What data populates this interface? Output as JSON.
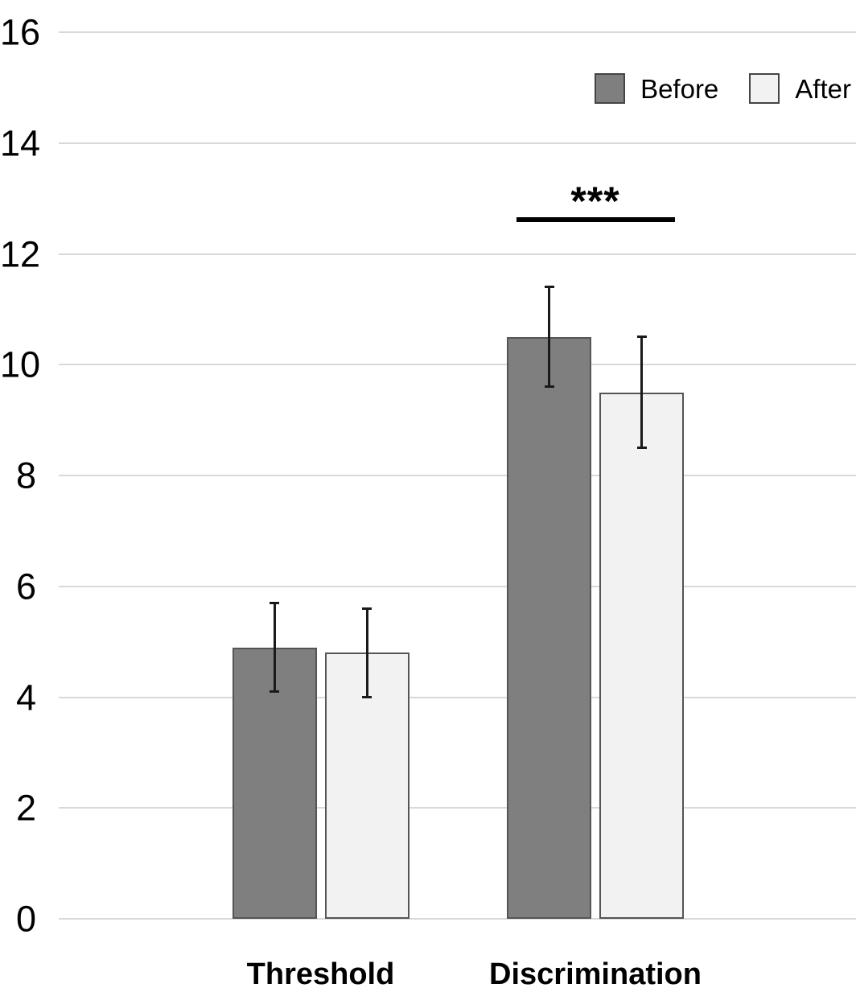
{
  "chart_data": {
    "type": "bar",
    "categories": [
      "Threshold",
      "Discrimination"
    ],
    "series": [
      {
        "name": "Before",
        "color": "#7f7f7f",
        "border_color": "#555555",
        "values": [
          4.9,
          10.5
        ],
        "error_low": [
          4.1,
          9.6
        ],
        "error_high": [
          5.7,
          11.4
        ]
      },
      {
        "name": "After",
        "color": "#f2f2f2",
        "border_color": "#555555",
        "values": [
          4.8,
          9.5
        ],
        "error_low": [
          4.0,
          8.5
        ],
        "error_high": [
          5.6,
          10.5
        ]
      }
    ],
    "title": "",
    "xlabel": "",
    "ylabel": "",
    "ylim": [
      0,
      16
    ],
    "yticks": [
      0,
      2,
      4,
      6,
      8,
      10,
      12,
      14,
      16
    ],
    "grid": true,
    "gridline_color": "#d9d9d9",
    "background": "#ffffff",
    "legend_position": "top-right",
    "annotations": [
      {
        "type": "significance",
        "text": "***",
        "category": "Discrimination"
      }
    ]
  }
}
